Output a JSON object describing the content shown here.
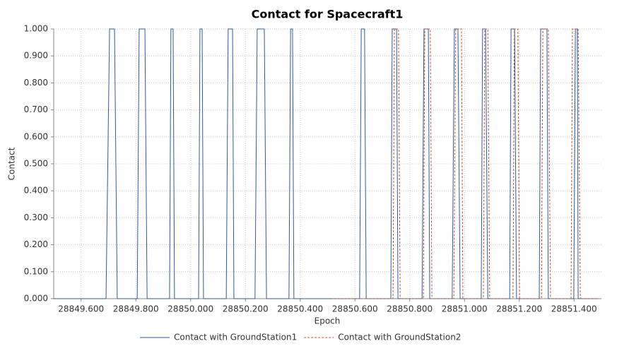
{
  "chart_data": {
    "type": "line",
    "title": "Contact for Spacecraft1",
    "x_label": "Epoch",
    "y_label": "Contact",
    "xlim": [
      28849.5,
      28851.5
    ],
    "ylim": [
      0,
      1
    ],
    "xticks": [
      {
        "value": 28849.6,
        "label": "28849.600"
      },
      {
        "value": 28849.8,
        "label": "28849.800"
      },
      {
        "value": 28850.0,
        "label": "28850.000"
      },
      {
        "value": 28850.2,
        "label": "28850.200"
      },
      {
        "value": 28850.4,
        "label": "28850.400"
      },
      {
        "value": 28850.6,
        "label": "28850.600"
      },
      {
        "value": 28850.8,
        "label": "28850.800"
      },
      {
        "value": 28851.0,
        "label": "28851.000"
      },
      {
        "value": 28851.2,
        "label": "28851.200"
      },
      {
        "value": 28851.4,
        "label": "28851.400"
      }
    ],
    "yticks": [
      {
        "value": 0,
        "label": "0.000"
      },
      {
        "value": 0.1,
        "label": "0.100"
      },
      {
        "value": 0.2,
        "label": "0.200"
      },
      {
        "value": 0.3,
        "label": "0.300"
      },
      {
        "value": 0.4,
        "label": "0.400"
      },
      {
        "value": 0.5,
        "label": "0.500"
      },
      {
        "value": 0.6,
        "label": "0.600"
      },
      {
        "value": 0.7,
        "label": "0.700"
      },
      {
        "value": 0.8,
        "label": "0.800"
      },
      {
        "value": 0.9,
        "label": "0.900"
      },
      {
        "value": 1,
        "label": "1.000"
      }
    ],
    "grid": true,
    "legend": "bottom",
    "series": [
      {
        "name": "Contact with GroundStation1",
        "color": "#2f5b9a",
        "dashed": false,
        "x": [
          28849.5,
          28849.691,
          28849.704,
          28849.722,
          28849.732,
          28849.805,
          28849.812,
          28849.833,
          28849.841,
          28849.923,
          28849.928,
          28849.936,
          28849.941,
          28850.029,
          28850.034,
          28850.042,
          28850.047,
          28850.13,
          28850.137,
          28850.153,
          28850.158,
          28850.235,
          28850.243,
          28850.269,
          28850.277,
          28850.359,
          28850.365,
          28850.372,
          28850.377,
          28850.617,
          28850.623,
          28850.635,
          28850.641,
          28850.731,
          28850.736,
          28850.752,
          28850.757,
          28850.845,
          28850.852,
          28850.868,
          28850.873,
          28850.955,
          28850.963,
          28850.976,
          28850.984,
          28851.061,
          28851.066,
          28851.077,
          28851.085,
          28851.165,
          28851.17,
          28851.183,
          28851.19,
          28851.273,
          28851.278,
          28851.301,
          28851.306,
          28851.399,
          28851.405,
          28851.412,
          28851.415,
          28851.49
        ],
        "values": [
          0,
          0,
          1,
          1,
          0,
          0,
          1,
          1,
          0,
          0,
          1,
          1,
          0,
          0,
          1,
          1,
          0,
          0,
          1,
          1,
          0,
          0,
          1,
          1,
          0,
          0,
          1,
          1,
          0,
          0,
          1,
          1,
          0,
          0,
          1,
          1,
          0,
          0,
          1,
          1,
          0,
          0,
          1,
          1,
          0,
          0,
          1,
          1,
          0,
          0,
          1,
          1,
          0,
          0,
          1,
          1,
          0,
          0,
          1,
          1,
          0,
          0
        ]
      },
      {
        "name": "Contact with GroundStation2",
        "color": "#c0502c",
        "dashed": true,
        "x": [
          28850.517,
          28850.739,
          28850.744,
          28850.759,
          28850.765,
          28850.85,
          28850.855,
          28850.875,
          28850.881,
          28850.961,
          28850.968,
          28850.989,
          28850.994,
          28851.069,
          28851.074,
          28851.085,
          28851.092,
          28851.177,
          28851.182,
          28851.195,
          28851.201,
          28851.281,
          28851.286,
          28851.306,
          28851.314,
          28851.389,
          28851.394,
          28851.415,
          28851.423,
          28851.49
        ],
        "values": [
          0,
          0,
          1,
          1,
          0,
          0,
          1,
          1,
          0,
          0,
          1,
          1,
          0,
          0,
          1,
          1,
          0,
          0,
          1,
          1,
          0,
          0,
          1,
          1,
          0,
          0,
          1,
          1,
          0,
          0
        ]
      }
    ]
  }
}
